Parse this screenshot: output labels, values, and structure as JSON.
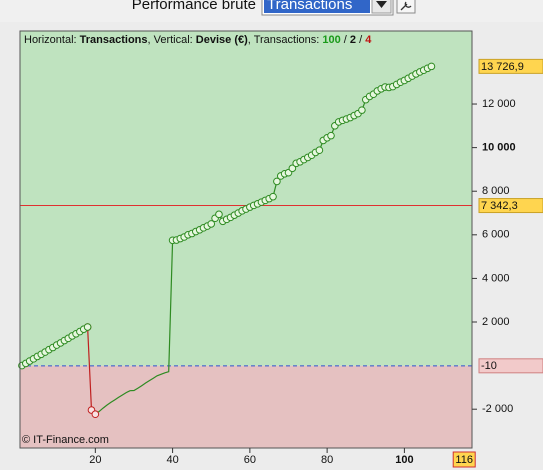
{
  "header": {
    "label": "Performance brute",
    "select": "Transactions"
  },
  "chart_data": {
    "type": "line",
    "info": [
      {
        "text": "Horizontal: "
      },
      {
        "text": "Transactions",
        "bold": true
      },
      {
        "text": ", Vertical: "
      },
      {
        "text": "Devise (€)",
        "bold": true
      },
      {
        "text": ", Transactions: "
      },
      {
        "text": "100",
        "bold": true,
        "color": "#1a9a1a"
      },
      {
        "text": " / "
      },
      {
        "text": "2",
        "bold": true
      },
      {
        "text": " / "
      },
      {
        "text": "4",
        "bold": true,
        "color": "#c01010"
      }
    ],
    "copyright": "© IT-Finance.com",
    "xlim": [
      0.5,
      117.5
    ],
    "ylim": [
      -3780,
      15350
    ],
    "xticks": [
      20,
      40,
      60,
      80,
      100
    ],
    "yticks": [
      {
        "value": -2000,
        "label": "-2 000"
      },
      {
        "value": 2000,
        "label": "2 000"
      },
      {
        "value": 4000,
        "label": "4 000"
      },
      {
        "value": 6000,
        "label": "6 000"
      },
      {
        "value": 8000,
        "label": "8 000"
      },
      {
        "value": 10000,
        "label": "10 000"
      },
      {
        "value": 12000,
        "label": "12 000"
      }
    ],
    "fill_above": "#bfe3bf",
    "fill_below": "#e5c1c1",
    "levels": [
      {
        "value": 13726.9,
        "label": "13 726,9",
        "box": "#ffd54f"
      },
      {
        "value": 7342.3,
        "label": "7 342,3",
        "box": "#ffd54f",
        "line_color": "#e03030"
      },
      {
        "value": -10,
        "label": "-10",
        "box": "#f2caca",
        "line_color": "#3050d0",
        "dashed": true,
        "fill_split": true
      }
    ],
    "x_marker": {
      "value": 116,
      "box": "#ffd54f"
    },
    "series": [
      {
        "color": "#2e8b22",
        "markers": true,
        "marker_fill": "#e6f7de",
        "x": [
          1,
          2,
          3,
          4,
          5,
          6,
          7,
          8,
          9,
          10,
          11,
          12,
          13,
          14,
          15,
          16,
          17,
          18
        ],
        "values": [
          0,
          100,
          210,
          310,
          420,
          520,
          620,
          730,
          830,
          940,
          1040,
          1150,
          1250,
          1360,
          1460,
          1560,
          1670,
          1770
        ]
      },
      {
        "color": "#c02020",
        "markers": true,
        "marker_fill": "#f8e2e2",
        "x": [
          18,
          19,
          20
        ],
        "values": [
          1770,
          -2040,
          -2230
        ]
      },
      {
        "color": "#2e8b22",
        "markers": false,
        "x": [
          20,
          21,
          22,
          23,
          24,
          25,
          26,
          27,
          28,
          29,
          30,
          31,
          32,
          33,
          34,
          35,
          36,
          37,
          38,
          39,
          40
        ],
        "values": [
          -2230,
          -2100,
          -1950,
          -1810,
          -1690,
          -1580,
          -1460,
          -1350,
          -1240,
          -1150,
          -1140,
          -1040,
          -920,
          -800,
          -690,
          -580,
          -470,
          -400,
          -330,
          -280,
          5750
        ]
      },
      {
        "color": "#2e8b22",
        "markers": true,
        "marker_fill": "#e6f7de",
        "x": [
          40,
          41,
          42,
          43,
          44,
          45,
          46,
          47,
          48,
          49,
          50,
          51,
          52,
          53,
          54,
          55,
          56,
          57,
          58,
          59,
          60,
          61,
          62,
          63,
          64,
          65,
          66,
          67,
          68,
          69,
          70,
          71,
          72,
          73,
          74,
          75,
          76,
          77,
          78,
          79,
          80,
          81,
          82,
          83,
          84,
          85,
          86,
          87,
          88,
          89,
          90,
          91,
          92,
          93,
          94,
          95,
          96,
          97,
          98,
          99,
          100,
          101,
          102,
          103,
          104,
          105,
          106,
          107
        ],
        "values": [
          5750,
          5760,
          5830,
          5900,
          6000,
          6060,
          6150,
          6230,
          6320,
          6400,
          6500,
          6760,
          6940,
          6620,
          6710,
          6800,
          6900,
          7000,
          7100,
          7180,
          7270,
          7350,
          7420,
          7500,
          7580,
          7660,
          7750,
          8450,
          8700,
          8800,
          8850,
          9050,
          9280,
          9350,
          9450,
          9550,
          9650,
          9780,
          9880,
          10330,
          10450,
          10550,
          11000,
          11180,
          11250,
          11310,
          11380,
          11470,
          11560,
          11720,
          12200,
          12350,
          12450,
          12600,
          12700,
          12780,
          12760,
          12800,
          12900,
          13000,
          13080,
          13180,
          13280,
          13380,
          13470,
          13550,
          13640,
          13726.9
        ]
      }
    ]
  }
}
